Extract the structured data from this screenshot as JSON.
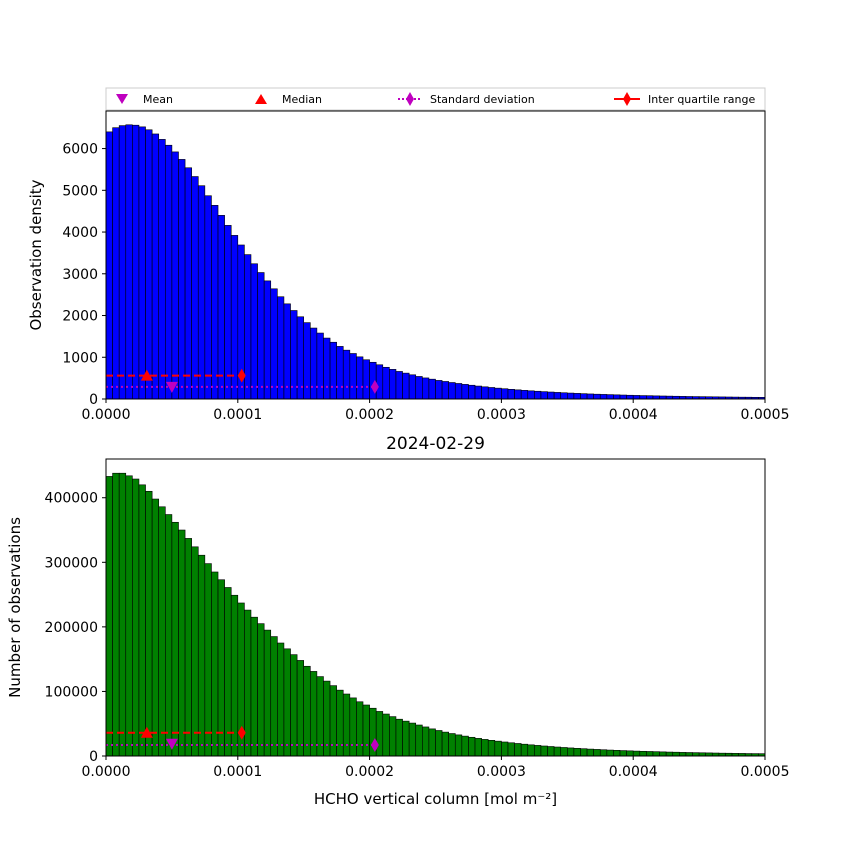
{
  "chart_data": [
    {
      "type": "bar",
      "panel": "top",
      "bar_color": "#0000ff",
      "title": "",
      "xlabel": "",
      "ylabel": "Observation density",
      "xlim": [
        0,
        0.0005
      ],
      "ylim": [
        0,
        6900
      ],
      "xticks": [
        0,
        0.0001,
        0.0002,
        0.0003,
        0.0004,
        0.0005
      ],
      "xtick_labels": [
        "0.0000",
        "0.0001",
        "0.0002",
        "0.0003",
        "0.0004",
        "0.0005"
      ],
      "yticks": [
        0,
        1000,
        2000,
        3000,
        4000,
        5000,
        6000
      ],
      "ytick_labels": [
        "0",
        "1000",
        "2000",
        "3000",
        "4000",
        "5000",
        "6000"
      ],
      "bin_width": 5e-06,
      "bin_start": 0,
      "values": [
        6400,
        6500,
        6550,
        6570,
        6560,
        6520,
        6450,
        6350,
        6220,
        6080,
        5920,
        5740,
        5540,
        5330,
        5110,
        4870,
        4640,
        4400,
        4160,
        3920,
        3690,
        3460,
        3240,
        3030,
        2830,
        2640,
        2450,
        2280,
        2120,
        1970,
        1830,
        1700,
        1580,
        1460,
        1360,
        1260,
        1170,
        1090,
        1010,
        940,
        880,
        820,
        760,
        710,
        660,
        620,
        580,
        540,
        505,
        475,
        445,
        420,
        395,
        372,
        350,
        330,
        310,
        292,
        276,
        260,
        246,
        232,
        219,
        207,
        196,
        186,
        176,
        167,
        158,
        150,
        142,
        135,
        128,
        121,
        115,
        110,
        105,
        100,
        95,
        90,
        86,
        82,
        79,
        75,
        72,
        69,
        66,
        63,
        60,
        58,
        56,
        54,
        52,
        50,
        48,
        46,
        44,
        43,
        41,
        40
      ],
      "markers": {
        "mean": {
          "x": 5e-05,
          "y": 290
        },
        "median": {
          "x": 3.1e-05,
          "y": 560
        },
        "std": {
          "x0": 0.0,
          "x1": 0.000204,
          "y": 290
        },
        "iqr": {
          "x0": 0.0,
          "x1": 0.000103,
          "y": 560
        }
      }
    },
    {
      "type": "bar",
      "panel": "bottom",
      "bar_color": "#008000",
      "title": "2024-02-29",
      "xlabel": "HCHO vertical column [mol m⁻²]",
      "ylabel": "Number of observations",
      "xlim": [
        0,
        0.0005
      ],
      "ylim": [
        0,
        460000
      ],
      "xticks": [
        0,
        0.0001,
        0.0002,
        0.0003,
        0.0004,
        0.0005
      ],
      "xtick_labels": [
        "0.0000",
        "0.0001",
        "0.0002",
        "0.0003",
        "0.0004",
        "0.0005"
      ],
      "yticks": [
        0,
        100000,
        200000,
        300000,
        400000
      ],
      "ytick_labels": [
        "0",
        "100000",
        "200000",
        "300000",
        "400000"
      ],
      "bin_width": 5e-06,
      "bin_start": 0,
      "values": [
        433000,
        438000,
        438000,
        434000,
        429000,
        420000,
        410000,
        398000,
        386000,
        374000,
        362000,
        350000,
        337000,
        324000,
        311000,
        298000,
        285000,
        273000,
        261000,
        249000,
        237000,
        226000,
        215000,
        205000,
        195000,
        185000,
        175000,
        166000,
        157000,
        148000,
        139000,
        131000,
        123000,
        116000,
        109000,
        102000,
        96000,
        90000,
        84000,
        79000,
        74000,
        69000,
        65000,
        61000,
        57000,
        54000,
        51000,
        48000,
        45000,
        42000,
        39500,
        37000,
        34800,
        32700,
        30800,
        29000,
        27300,
        25700,
        24300,
        23000,
        21700,
        20500,
        19400,
        18300,
        17300,
        16400,
        15500,
        14700,
        13900,
        13200,
        12500,
        11900,
        11300,
        10700,
        10200,
        9700,
        9200,
        8800,
        8400,
        8000,
        7600,
        7300,
        7000,
        6700,
        6400,
        6100,
        5900,
        5600,
        5400,
        5200,
        5000,
        4800,
        4600,
        4400,
        4300,
        4100,
        4000,
        3800,
        3700,
        3600
      ],
      "markers": {
        "mean": {
          "x": 5e-05,
          "y": 19000
        },
        "median": {
          "x": 3.1e-05,
          "y": 36000
        },
        "std": {
          "x0": 0.0,
          "x1": 0.000204,
          "y": 17000
        },
        "iqr": {
          "x0": 0.0,
          "x1": 0.000103,
          "y": 36000
        }
      }
    }
  ],
  "legend": {
    "placement": "top",
    "entries": [
      {
        "label": "Mean",
        "color": "#bf00bf",
        "symbol": "triangle-down"
      },
      {
        "label": "Median",
        "color": "#ff0000",
        "symbol": "triangle-up"
      },
      {
        "label": "Standard deviation",
        "color": "#bf00bf",
        "symbol": "diamond-dotted"
      },
      {
        "label": "Inter quartile range",
        "color": "#ff0000",
        "symbol": "diamond-solid"
      }
    ]
  }
}
